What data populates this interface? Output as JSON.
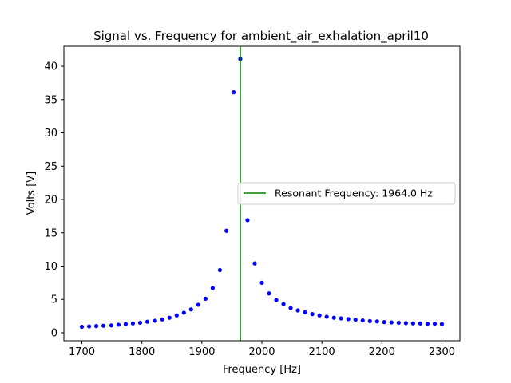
{
  "chart_data": {
    "type": "scatter",
    "title": "Signal vs. Frequency for ambient_air_exhalation_april10",
    "xlabel": "Frequency [Hz]",
    "ylabel": "Volts [V]",
    "xlim": [
      1670,
      2330
    ],
    "ylim": [
      -1.2,
      43.0
    ],
    "xticks": [
      1700,
      1800,
      1900,
      2000,
      2100,
      2200,
      2300
    ],
    "yticks": [
      0,
      5,
      10,
      15,
      20,
      25,
      30,
      35,
      40
    ],
    "grid": false,
    "legend_position": "center-right",
    "series": [
      {
        "color": "#0000ff",
        "marker": "circle",
        "x": [
          1700,
          1712,
          1724,
          1736,
          1749,
          1761,
          1773,
          1785,
          1797,
          1809,
          1822,
          1834,
          1846,
          1858,
          1870,
          1882,
          1894,
          1906,
          1918,
          1930,
          1941,
          1953,
          1964,
          1976,
          1988,
          2000,
          2012,
          2024,
          2036,
          2048,
          2060,
          2072,
          2084,
          2096,
          2108,
          2120,
          2132,
          2144,
          2156,
          2168,
          2180,
          2192,
          2204,
          2216,
          2228,
          2240,
          2252,
          2264,
          2276,
          2288,
          2300
        ],
        "y": [
          0.9,
          0.95,
          1.0,
          1.05,
          1.1,
          1.2,
          1.3,
          1.4,
          1.5,
          1.65,
          1.8,
          2.0,
          2.25,
          2.6,
          3.0,
          3.5,
          4.2,
          5.1,
          6.7,
          9.4,
          15.3,
          36.1,
          41.1,
          16.9,
          10.4,
          7.5,
          5.9,
          4.9,
          4.3,
          3.7,
          3.35,
          3.05,
          2.8,
          2.6,
          2.4,
          2.25,
          2.15,
          2.05,
          1.95,
          1.85,
          1.75,
          1.7,
          1.6,
          1.55,
          1.5,
          1.45,
          1.4,
          1.4,
          1.35,
          1.35,
          1.3
        ]
      }
    ],
    "vline": {
      "x": 1964.0,
      "color": "#008000",
      "label": "Resonant Frequency: 1964.0 Hz"
    }
  }
}
